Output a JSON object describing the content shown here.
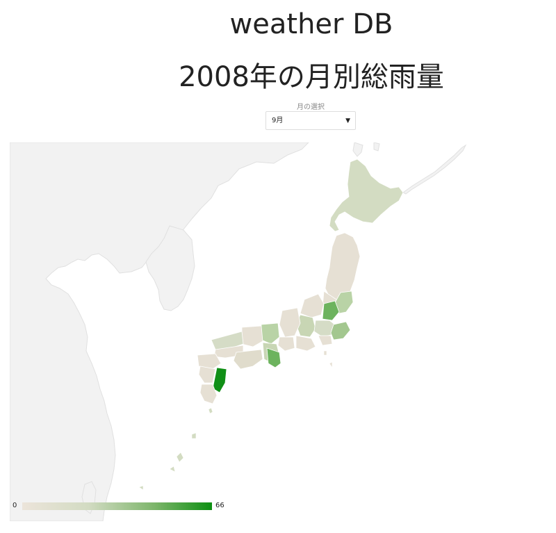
{
  "header": {
    "title": "weather DB",
    "subtitle": "2008年の月別総雨量"
  },
  "month_select": {
    "label": "月の選択",
    "value": "9月",
    "arrow": "▼"
  },
  "legend": {
    "min": "0",
    "max": "66",
    "color_low": "#ece4da",
    "color_high": "#0d8f12"
  },
  "colors": {
    "background_land": "#f2f2f2",
    "background_land_border": "#e2e2e2",
    "japan_default": "#e6e0d4",
    "hokkaido": "#d3dcc2",
    "low_green": "#b9d3a6",
    "mid_green": "#6db35e",
    "high_green": "#108f16"
  }
}
